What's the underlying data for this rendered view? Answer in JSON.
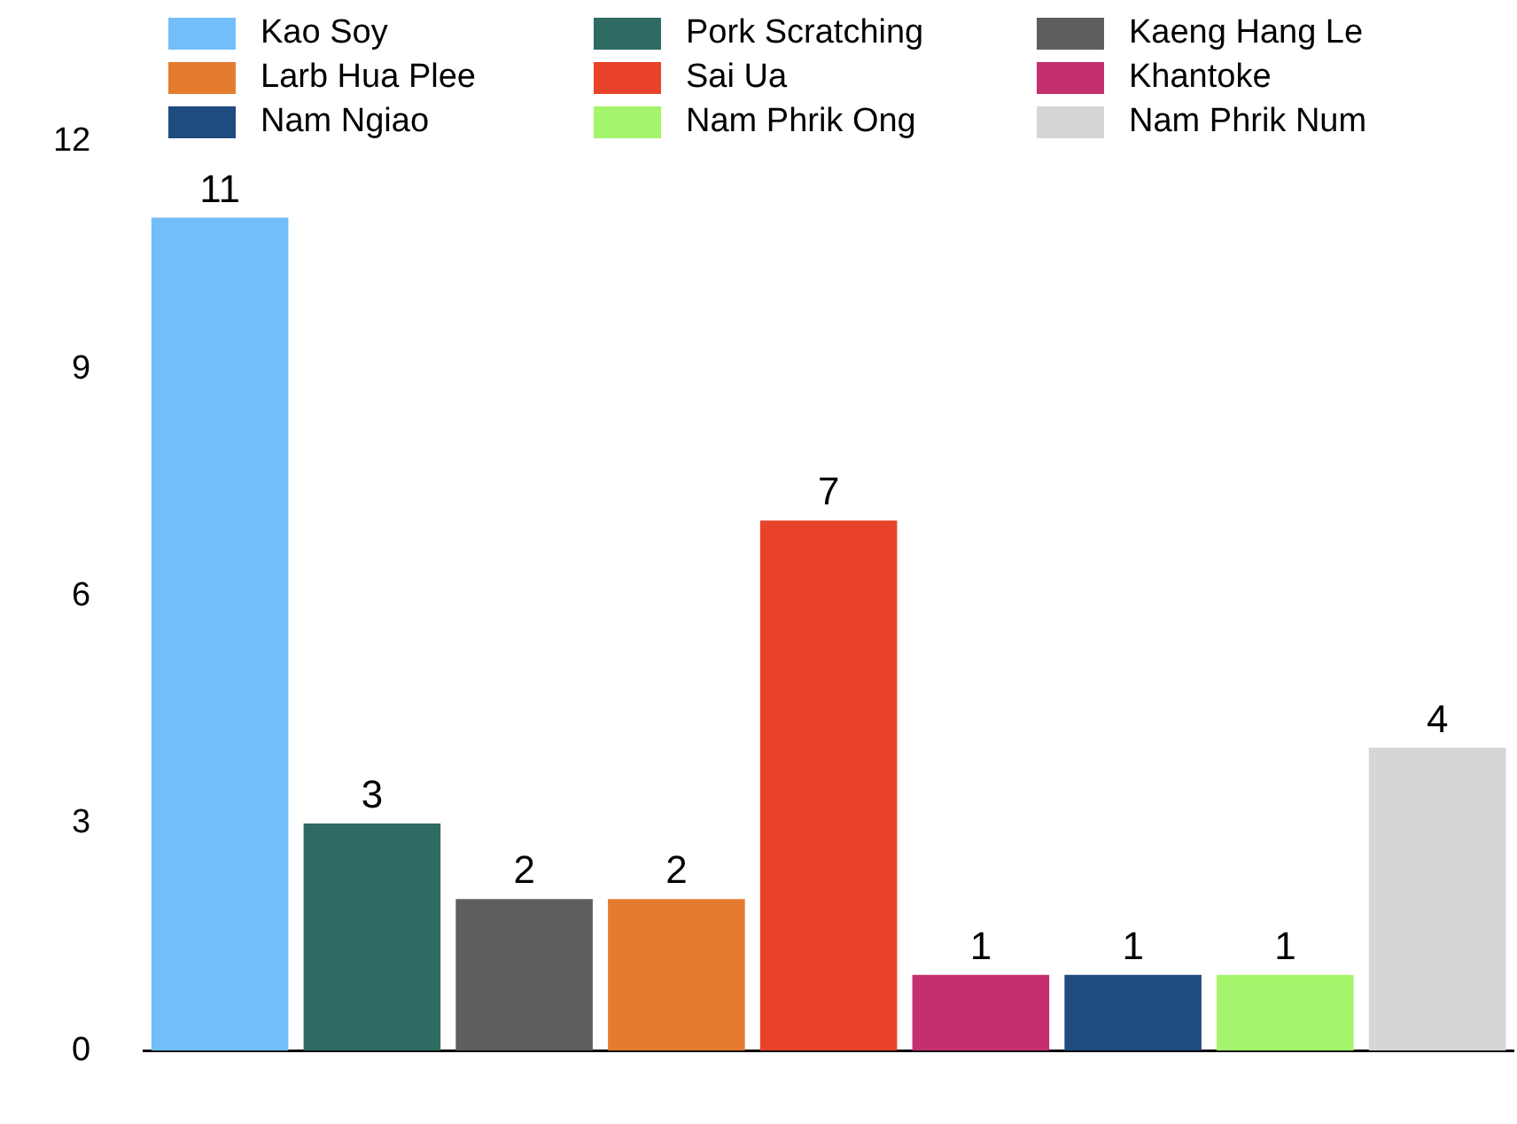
{
  "chart_data": {
    "type": "bar",
    "categories": [
      null
    ],
    "series": [
      {
        "name": "Kao Soy",
        "color": "#72bef9",
        "values": [
          11
        ]
      },
      {
        "name": "Pork Scratching",
        "color": "#2e6b62",
        "values": [
          3
        ]
      },
      {
        "name": "Kaeng Hang Le",
        "color": "#5e5e5e",
        "values": [
          2
        ]
      },
      {
        "name": "Larb Hua Plee",
        "color": "#e57b2f",
        "values": [
          2
        ]
      },
      {
        "name": "Sai Ua",
        "color": "#e8432a",
        "values": [
          7
        ]
      },
      {
        "name": "Khantoke",
        "color": "#c4306f",
        "values": [
          1
        ]
      },
      {
        "name": "Nam Ngiao",
        "color": "#1f4b80",
        "values": [
          1
        ]
      },
      {
        "name": "Nam Phrik Ong",
        "color": "#a4f56b",
        "values": [
          1
        ]
      },
      {
        "name": "Nam Phrik Num",
        "color": "#d6d6d6",
        "values": [
          4
        ]
      }
    ],
    "ylim": [
      0,
      12
    ],
    "yticks": [
      0,
      3,
      6,
      9,
      12
    ],
    "grid": false,
    "legend": "top",
    "data_labels": true
  }
}
